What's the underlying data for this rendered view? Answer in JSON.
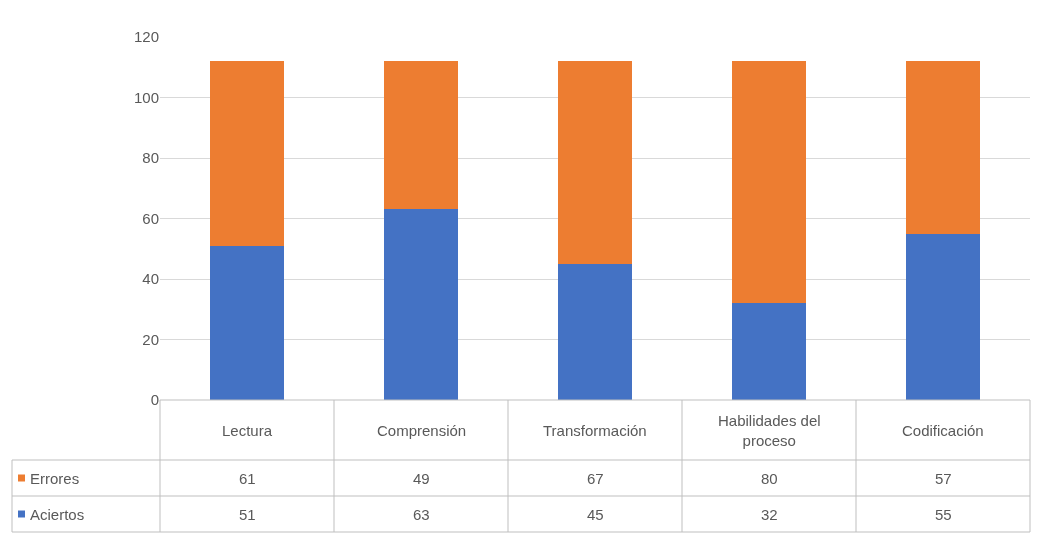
{
  "chart_data": {
    "type": "bar",
    "stacked": true,
    "categories": [
      "Lectura",
      "Comprensión",
      "Transformación",
      "Habilidades del proceso",
      "Codificación"
    ],
    "series": [
      {
        "name": "Aciertos",
        "color": "#4472c4",
        "values": [
          51,
          63,
          45,
          32,
          55
        ]
      },
      {
        "name": "Errores",
        "color": "#ed7d31",
        "values": [
          61,
          49,
          67,
          80,
          57
        ]
      }
    ],
    "ylim": [
      0,
      120
    ],
    "yticks": [
      0,
      20,
      40,
      60,
      80,
      100,
      120
    ],
    "grid": "y",
    "legend": "bottom left",
    "data_labels": true
  }
}
